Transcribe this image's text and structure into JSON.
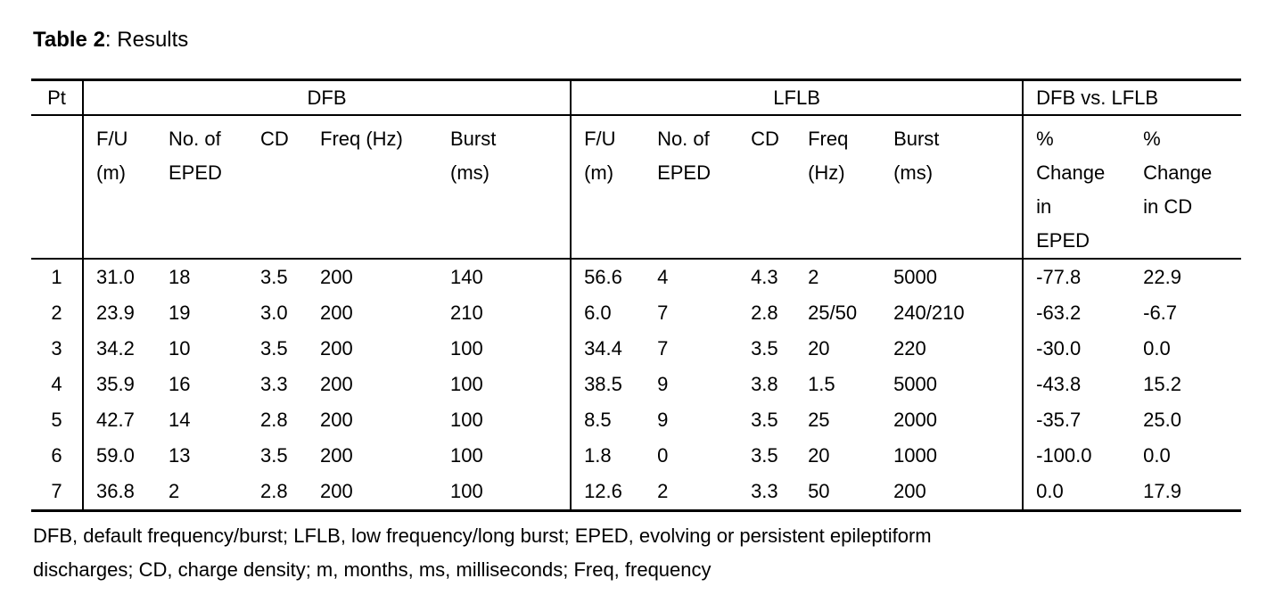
{
  "caption": {
    "label": "Table 2",
    "rest": ": Results"
  },
  "table": {
    "group_headers": [
      {
        "label": "Pt"
      },
      {
        "label": "DFB"
      },
      {
        "label": "LFLB"
      },
      {
        "label": "DFB vs. LFLB"
      }
    ],
    "column_headers": [
      "",
      "F/U\n(m)",
      "No. of\nEPED",
      "CD",
      "Freq (Hz)",
      "Burst\n(ms)",
      "F/U\n(m)",
      "No. of\nEPED",
      "CD",
      "Freq\n(Hz)",
      "Burst\n(ms)",
      "%\nChange\nin\nEPED",
      "%\nChange\nin CD"
    ],
    "rows": [
      [
        "1",
        "31.0",
        "18",
        "3.5",
        "200",
        "140",
        "56.6",
        "4",
        "4.3",
        "2",
        "5000",
        "-77.8",
        "22.9"
      ],
      [
        "2",
        "23.9",
        "19",
        "3.0",
        "200",
        "210",
        "6.0",
        "7",
        "2.8",
        "25/50",
        "240/210",
        "-63.2",
        "-6.7"
      ],
      [
        "3",
        "34.2",
        "10",
        "3.5",
        "200",
        "100",
        "34.4",
        "7",
        "3.5",
        "20",
        "220",
        "-30.0",
        "0.0"
      ],
      [
        "4",
        "35.9",
        "16",
        "3.3",
        "200",
        "100",
        "38.5",
        "9",
        "3.8",
        "1.5",
        "5000",
        "-43.8",
        "15.2"
      ],
      [
        "5",
        "42.7",
        "14",
        "2.8",
        "200",
        "100",
        "8.5",
        "9",
        "3.5",
        "25",
        "2000",
        "-35.7",
        "25.0"
      ],
      [
        "6",
        "59.0",
        "13",
        "3.5",
        "200",
        "100",
        "1.8",
        "0",
        "3.5",
        "20",
        "1000",
        "-100.0",
        "0.0"
      ],
      [
        "7",
        "36.8",
        "2",
        "2.8",
        "200",
        "100",
        "12.6",
        "2",
        "3.3",
        "50",
        "200",
        "0.0",
        "17.9"
      ]
    ]
  },
  "footnote": {
    "line1": "DFB, default frequency/burst; LFLB, low frequency/long burst; EPED, evolving or persistent epileptiform",
    "line2": "discharges; CD, charge density; m, months, ms, milliseconds; Freq, frequency"
  },
  "colors": {
    "background": "#ffffff",
    "text": "#000000",
    "rule": "#000000"
  }
}
